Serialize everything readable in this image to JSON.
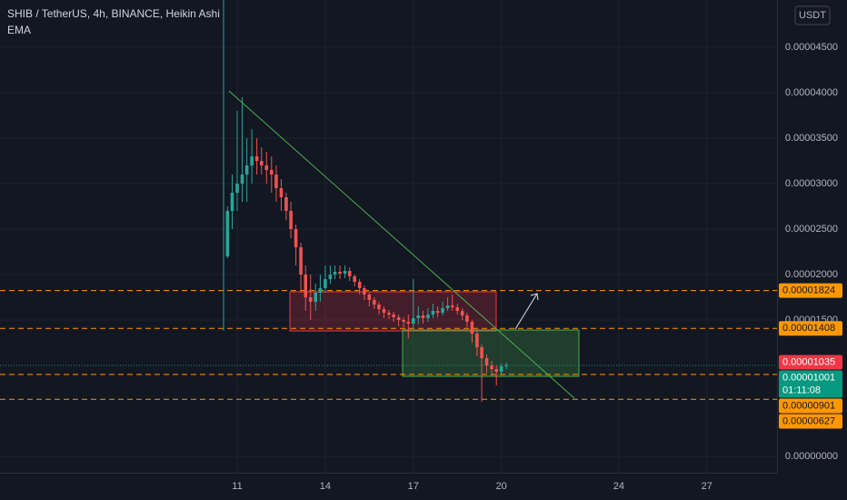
{
  "header": {
    "symbol": "SHIB / TetherUS, 4h, BINANCE, Heikin Ashi",
    "indicator": "EMA",
    "currency": "USDT"
  },
  "chart_data": {
    "type": "candlestick",
    "x": [
      10.67,
      10.83,
      11,
      11.17,
      11.33,
      11.5,
      11.67,
      11.83,
      12,
      12.17,
      12.33,
      12.5,
      12.67,
      12.83,
      13,
      13.17,
      13.33,
      13.5,
      13.67,
      13.83,
      14,
      14.17,
      14.33,
      14.5,
      14.67,
      14.83,
      15,
      15.17,
      15.33,
      15.5,
      15.67,
      15.83,
      16,
      16.17,
      16.33,
      16.5,
      16.67,
      16.83,
      17,
      17.17,
      17.33,
      17.5,
      17.67,
      17.83,
      18,
      18.17,
      18.33,
      18.5,
      18.67,
      18.83,
      19,
      19.17,
      19.33,
      19.5,
      19.67,
      19.83,
      20,
      20.17
    ],
    "open": [
      2.2e-05,
      2.7e-05,
      2.9e-05,
      3e-05,
      3.1e-05,
      3.2e-05,
      3.3e-05,
      3.25e-05,
      3.2e-05,
      3.15e-05,
      3.1e-05,
      2.95e-05,
      2.85e-05,
      2.7e-05,
      2.5e-05,
      2.3e-05,
      2e-05,
      1.75e-05,
      1.7e-05,
      1.8e-05,
      1.85e-05,
      1.95e-05,
      2e-05,
      2.03e-05,
      2.01e-05,
      2.04e-05,
      1.98e-05,
      1.92e-05,
      1.85e-05,
      1.78e-05,
      1.72e-05,
      1.67e-05,
      1.62e-05,
      1.58e-05,
      1.56e-05,
      1.53e-05,
      1.5e-05,
      1.48e-05,
      1.46e-05,
      1.52e-05,
      1.55e-05,
      1.52e-05,
      1.56e-05,
      1.6e-05,
      1.58e-05,
      1.63e-05,
      1.66e-05,
      1.64e-05,
      1.6e-05,
      1.55e-05,
      1.48e-05,
      1.35e-05,
      1.2e-05,
      1.08e-05,
      1e-05,
      9.6e-06,
      9.3e-06,
      9.9e-06
    ],
    "high": [
      2.75e-05,
      3.1e-05,
      3.8e-05,
      3.95e-05,
      3.5e-05,
      3.6e-05,
      3.5e-05,
      3.4e-05,
      3.35e-05,
      3.3e-05,
      3.2e-05,
      3.05e-05,
      2.9e-05,
      2.8e-05,
      2.55e-05,
      2.35e-05,
      2.1e-05,
      2e-05,
      1.9e-05,
      2e-05,
      2.1e-05,
      2.1e-05,
      2.1e-05,
      2.1e-05,
      2.1e-05,
      2.08e-05,
      2e-05,
      1.95e-05,
      1.88e-05,
      1.8e-05,
      1.75e-05,
      1.7e-05,
      1.65e-05,
      1.61e-05,
      1.59e-05,
      1.56e-05,
      1.53e-05,
      1.56e-05,
      1.95e-05,
      1.65e-05,
      1.6e-05,
      1.63e-05,
      1.68e-05,
      1.65e-05,
      1.7e-05,
      1.75e-05,
      1.78e-05,
      1.68e-05,
      1.63e-05,
      1.58e-05,
      1.5e-05,
      1.38e-05,
      1.23e-05,
      1.12e-05,
      1.05e-05,
      1e-05,
      1.02e-05,
      1.03e-05
    ],
    "low": [
      2.18e-05,
      2.5e-05,
      2.7e-05,
      2.8e-05,
      2.8e-05,
      3e-05,
      3.1e-05,
      3.1e-05,
      3e-05,
      2.9e-05,
      2.8e-05,
      2.7e-05,
      2.6e-05,
      2.4e-05,
      2.1e-05,
      1.8e-05,
      1.6e-05,
      1.5e-05,
      1.6e-05,
      1.7e-05,
      1.8e-05,
      1.9e-05,
      1.95e-05,
      1.95e-05,
      1.96e-05,
      1.93e-05,
      1.87e-05,
      1.78e-05,
      1.72e-05,
      1.65e-05,
      1.62e-05,
      1.56e-05,
      1.52e-05,
      1.51e-05,
      1.48e-05,
      1.43e-05,
      1.42e-05,
      1.3e-05,
      1.4e-05,
      1.45e-05,
      1.46e-05,
      1.48e-05,
      1.52e-05,
      1.53e-05,
      1.55e-05,
      1.6e-05,
      1.6e-05,
      1.56e-05,
      1.5e-05,
      1.42e-05,
      1.25e-05,
      1.1e-05,
      6e-06,
      9.2e-06,
      8.8e-06,
      7.8e-06,
      9e-06,
      9.6e-06
    ],
    "close": [
      2.7e-05,
      2.9e-05,
      3e-05,
      3.1e-05,
      3.2e-05,
      3.3e-05,
      3.25e-05,
      3.2e-05,
      3.15e-05,
      3.1e-05,
      2.95e-05,
      2.85e-05,
      2.7e-05,
      2.5e-05,
      2.3e-05,
      2e-05,
      1.75e-05,
      1.7e-05,
      1.8e-05,
      1.85e-05,
      1.95e-05,
      2e-05,
      2.03e-05,
      2.01e-05,
      2.04e-05,
      1.98e-05,
      1.92e-05,
      1.85e-05,
      1.78e-05,
      1.72e-05,
      1.67e-05,
      1.62e-05,
      1.58e-05,
      1.56e-05,
      1.53e-05,
      1.5e-05,
      1.48e-05,
      1.46e-05,
      1.52e-05,
      1.55e-05,
      1.52e-05,
      1.56e-05,
      1.6e-05,
      1.58e-05,
      1.63e-05,
      1.66e-05,
      1.64e-05,
      1.6e-05,
      1.55e-05,
      1.48e-05,
      1.35e-05,
      1.2e-05,
      1.08e-05,
      1e-05,
      9.6e-06,
      9.3e-06,
      9.9e-06,
      1e-05
    ],
    "up_color": "#26a69a",
    "down_color": "#ef5350",
    "xlim": [
      2.92,
      29.39
    ],
    "xticks": [
      11,
      14,
      17,
      20,
      24,
      27
    ],
    "ylim": [
      -1.8e-06,
      5.02e-05
    ],
    "yticks": [
      {
        "value": 0,
        "label": "0.00000000"
      },
      {
        "value": 1.5e-05,
        "label": "0.00001500"
      },
      {
        "value": 2e-05,
        "label": "0.00002000"
      },
      {
        "value": 2.5e-05,
        "label": "0.00002500"
      },
      {
        "value": 3e-05,
        "label": "0.00003000"
      },
      {
        "value": 3.5e-05,
        "label": "0.00003500"
      },
      {
        "value": 4e-05,
        "label": "0.00004000"
      },
      {
        "value": 4.5e-05,
        "label": "0.00004500"
      }
    ],
    "levels": [
      {
        "value": 1.824e-05,
        "label": "0.00001824"
      },
      {
        "value": 1.408e-05,
        "label": "0.00001408"
      },
      {
        "value": 9.01e-06,
        "label": "0.00000901"
      },
      {
        "value": 6.27e-06,
        "label": "0.00000627"
      }
    ],
    "level_color": "#ff9800",
    "price_labels": [
      {
        "value": 1.035e-05,
        "label": "0.00001035",
        "color": "#f23645"
      },
      {
        "value": 1.001e-05,
        "label": "0.00001001",
        "countdown": "01:11:08",
        "color": "#089981"
      }
    ],
    "grid": true
  }
}
